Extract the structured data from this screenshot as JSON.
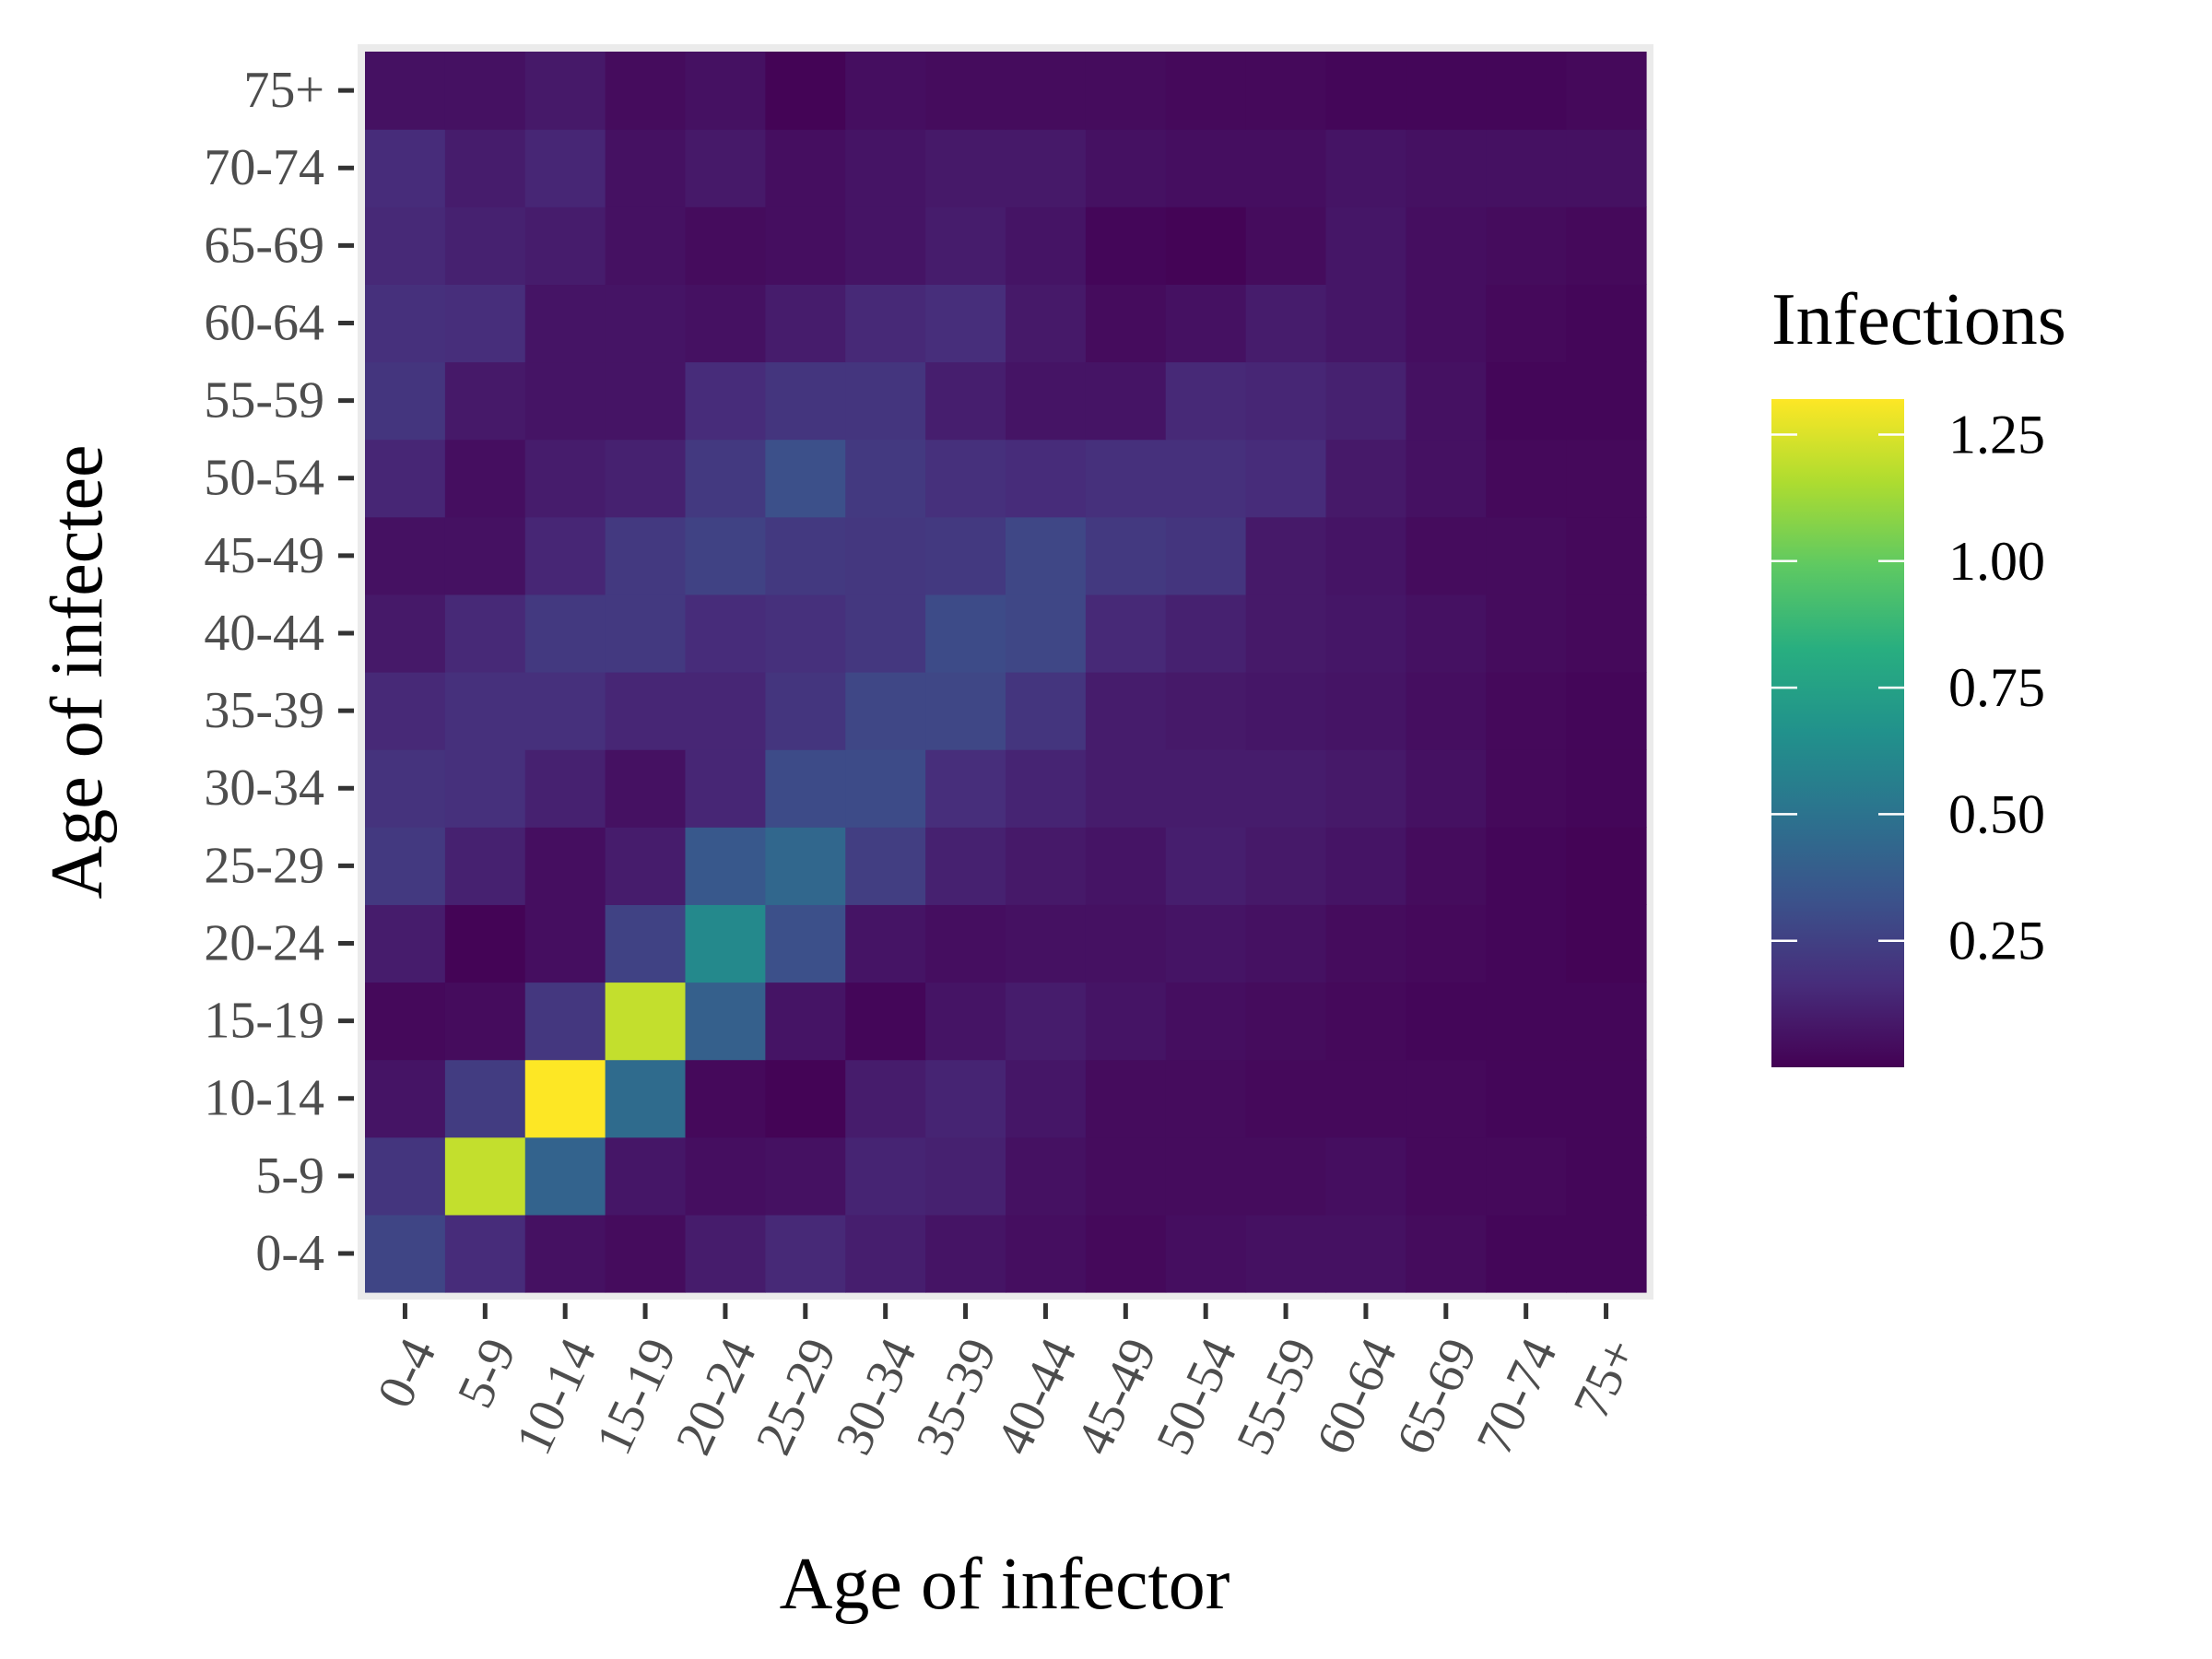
{
  "chart_data": {
    "type": "heatmap",
    "title": "",
    "xlabel": "Age of infector",
    "ylabel": "Age of infectee",
    "x_categories": [
      "0-4",
      "5-9",
      "10-14",
      "15-19",
      "20-24",
      "25-29",
      "30-34",
      "35-39",
      "40-44",
      "45-49",
      "50-54",
      "55-59",
      "60-64",
      "65-69",
      "70-74",
      "75+"
    ],
    "y_categories": [
      "0-4",
      "5-9",
      "10-14",
      "15-19",
      "20-24",
      "25-29",
      "30-34",
      "35-39",
      "40-44",
      "45-49",
      "50-54",
      "55-59",
      "60-64",
      "65-69",
      "70-74",
      "75+"
    ],
    "values": [
      [
        0.27,
        0.16,
        0.06,
        0.04,
        0.1,
        0.15,
        0.11,
        0.07,
        0.05,
        0.03,
        0.05,
        0.06,
        0.06,
        0.04,
        0.02,
        0.02
      ],
      [
        0.2,
        1.2,
        0.42,
        0.08,
        0.05,
        0.06,
        0.13,
        0.12,
        0.06,
        0.04,
        0.04,
        0.04,
        0.05,
        0.03,
        0.03,
        0.02
      ],
      [
        0.07,
        0.23,
        1.32,
        0.46,
        0.03,
        0.01,
        0.1,
        0.13,
        0.08,
        0.04,
        0.04,
        0.03,
        0.03,
        0.03,
        0.02,
        0.02
      ],
      [
        0.03,
        0.04,
        0.21,
        1.2,
        0.4,
        0.07,
        0.02,
        0.07,
        0.1,
        0.07,
        0.05,
        0.04,
        0.03,
        0.02,
        0.02,
        0.02
      ],
      [
        0.1,
        0.01,
        0.05,
        0.26,
        0.62,
        0.32,
        0.07,
        0.05,
        0.06,
        0.06,
        0.07,
        0.06,
        0.04,
        0.03,
        0.02,
        0.01
      ],
      [
        0.22,
        0.12,
        0.05,
        0.1,
        0.36,
        0.44,
        0.24,
        0.12,
        0.09,
        0.07,
        0.11,
        0.09,
        0.07,
        0.04,
        0.02,
        0.01
      ],
      [
        0.19,
        0.18,
        0.12,
        0.06,
        0.14,
        0.3,
        0.3,
        0.17,
        0.13,
        0.1,
        0.1,
        0.1,
        0.09,
        0.06,
        0.03,
        0.02
      ],
      [
        0.15,
        0.18,
        0.18,
        0.14,
        0.14,
        0.2,
        0.28,
        0.28,
        0.2,
        0.1,
        0.09,
        0.08,
        0.07,
        0.05,
        0.03,
        0.02
      ],
      [
        0.09,
        0.15,
        0.22,
        0.22,
        0.16,
        0.18,
        0.21,
        0.3,
        0.28,
        0.15,
        0.12,
        0.09,
        0.08,
        0.06,
        0.04,
        0.03
      ],
      [
        0.06,
        0.06,
        0.14,
        0.22,
        0.26,
        0.22,
        0.21,
        0.22,
        0.28,
        0.22,
        0.2,
        0.09,
        0.07,
        0.04,
        0.04,
        0.03
      ],
      [
        0.14,
        0.05,
        0.1,
        0.12,
        0.22,
        0.32,
        0.22,
        0.18,
        0.16,
        0.18,
        0.18,
        0.16,
        0.09,
        0.06,
        0.03,
        0.03
      ],
      [
        0.2,
        0.09,
        0.07,
        0.07,
        0.16,
        0.2,
        0.2,
        0.11,
        0.07,
        0.07,
        0.15,
        0.14,
        0.12,
        0.06,
        0.02,
        0.02
      ],
      [
        0.18,
        0.17,
        0.07,
        0.07,
        0.06,
        0.1,
        0.15,
        0.17,
        0.09,
        0.04,
        0.06,
        0.1,
        0.08,
        0.05,
        0.03,
        0.02
      ],
      [
        0.15,
        0.12,
        0.1,
        0.06,
        0.04,
        0.05,
        0.07,
        0.1,
        0.07,
        0.02,
        0.01,
        0.04,
        0.08,
        0.05,
        0.04,
        0.03
      ],
      [
        0.16,
        0.1,
        0.14,
        0.06,
        0.09,
        0.05,
        0.07,
        0.09,
        0.09,
        0.06,
        0.05,
        0.05,
        0.07,
        0.06,
        0.06,
        0.06
      ],
      [
        0.06,
        0.06,
        0.09,
        0.04,
        0.06,
        0.01,
        0.05,
        0.04,
        0.04,
        0.04,
        0.03,
        0.03,
        0.02,
        0.02,
        0.02,
        0.03
      ]
    ],
    "value_range": [
      0,
      1.32
    ],
    "colormap": "viridis",
    "legend": {
      "title": "Infections",
      "position": "right",
      "ticks": [
        0.25,
        0.5,
        0.75,
        1.0,
        1.25
      ],
      "tick_labels": [
        "0.25",
        "0.50",
        "0.75",
        "1.00",
        "1.25"
      ]
    },
    "panel_background": "#ebebeb",
    "grid": false
  }
}
